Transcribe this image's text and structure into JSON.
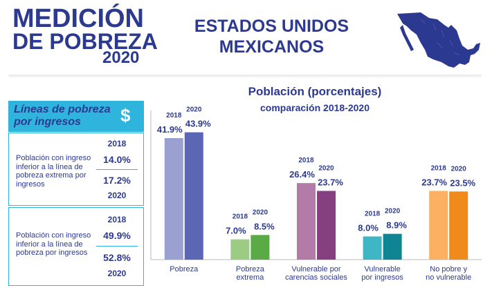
{
  "header": {
    "title_line1": "MEDICIÓN",
    "title_line2": "DE POBREZA",
    "year": "2020",
    "country_line1": "ESTADOS UNIDOS",
    "country_line2": "MEXICANOS",
    "map_icon": "mexico-map-icon"
  },
  "income_lines": {
    "title": "Líneas de pobreza por ingresos",
    "icon_symbol": "$",
    "items": [
      {
        "label": "Población con ingreso inferior a la línea de pobreza extrema por ingresos",
        "year_top": "2018",
        "value_top": "14.0%",
        "value_bottom": "17.2%",
        "year_bottom": "2020"
      },
      {
        "label": "Población con ingreso inferior a la línea de pobreza por ingresos",
        "year_top": "2018",
        "value_top": "49.9%",
        "value_bottom": "52.8%",
        "year_bottom": "2020"
      }
    ]
  },
  "colors": {
    "accent": "#2fb5dd",
    "text": "#2b3990"
  },
  "chart_data": {
    "type": "bar",
    "title": "Población (porcentajes)",
    "subtitle": "comparación 2018-2020",
    "categories": [
      "Pobreza",
      "Pobreza extrema",
      "Vulnerable por carencias sociales",
      "Vulnerable por ingresos",
      "No pobre y no vulnerable"
    ],
    "category_lines": [
      [
        "Pobreza"
      ],
      [
        "Pobreza",
        "extrema"
      ],
      [
        "Vulnerable por",
        "carencias sociales"
      ],
      [
        "Vulnerable",
        "por ingresos"
      ],
      [
        "No pobre y",
        "no vulnerable"
      ]
    ],
    "series": [
      {
        "name": "2018",
        "values": [
          41.9,
          7.0,
          26.4,
          8.0,
          23.7
        ],
        "labels": [
          "41.9%",
          "7.0%",
          "26.4%",
          "8.0%",
          "23.7%"
        ]
      },
      {
        "name": "2020",
        "values": [
          43.9,
          8.5,
          23.7,
          8.9,
          23.5
        ],
        "labels": [
          "43.9%",
          "8.5%",
          "23.7%",
          "8.9%",
          "23.5%"
        ]
      }
    ],
    "bar_colors": [
      [
        "#9aa0cf",
        "#5b66b5"
      ],
      [
        "#9ccb83",
        "#5aab45"
      ],
      [
        "#b37ba8",
        "#84407f"
      ],
      [
        "#3fb6c4",
        "#0f8493"
      ],
      [
        "#fbb161",
        "#f18a1c"
      ]
    ],
    "ylim": [
      0,
      50
    ],
    "xlabel": "",
    "ylabel": "",
    "grid": false
  }
}
